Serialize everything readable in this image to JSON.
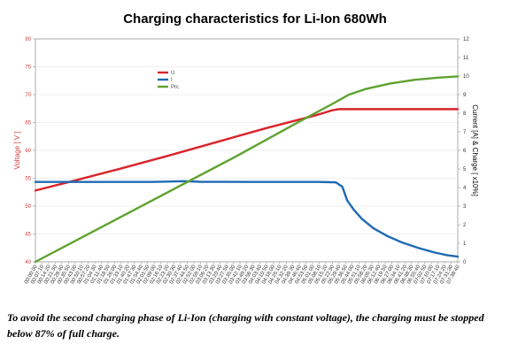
{
  "caption": "To avoid the second charging phase of Li-Ion (charging with constant voltage), the charging must be stopped below 87% of full charge.",
  "chart_data": {
    "type": "line",
    "title": "Charging characteristics for Li-Ion 680Wh",
    "ylabel_left": "Voltage [ V ]",
    "ylabel_right": "Current [A] & Charge [ x10%]",
    "ylim_left": [
      40,
      80
    ],
    "yticks_left": [
      "40",
      "45",
      "50",
      "55",
      "60",
      "65",
      "70",
      "75",
      "80"
    ],
    "ylim_right": [
      0,
      12
    ],
    "yticks_right": [
      "0",
      "1",
      "2",
      "3",
      "4",
      "5",
      "6",
      "7",
      "8",
      "9",
      "10",
      "11",
      "12"
    ],
    "xlim": [
      0,
      256
    ],
    "x_ticks": [
      "00:00:00",
      "00:07:10",
      "00:14:20",
      "00:21:30",
      "00:28:40",
      "00:35:50",
      "00:43:00",
      "00:50:10",
      "00:57:20",
      "01:04:30",
      "01:11:40",
      "01:18:50",
      "01:26:00",
      "01:33:10",
      "01:40:20",
      "01:47:30",
      "01:54:40",
      "02:01:50",
      "02:09:00",
      "02:16:10",
      "02:23:20",
      "02:30:30",
      "02:37:40",
      "02:44:50",
      "02:52:00",
      "02:59:10",
      "03:06:20",
      "03:13:30",
      "03:20:40",
      "03:27:50",
      "03:35:00",
      "03:42:10",
      "03:49:20",
      "03:56:30",
      "04:03:40",
      "04:10:50",
      "04:18:00",
      "04:25:10",
      "04:32:20",
      "04:39:30",
      "04:46:40",
      "04:53:50",
      "05:01:00",
      "05:08:10",
      "05:15:20",
      "05:22:30",
      "05:29:40",
      "05:36:50",
      "05:44:00",
      "05:51:10",
      "05:58:20",
      "06:05:30",
      "06:12:40",
      "06:19:50",
      "06:27:00",
      "06:34:10",
      "06:41:20",
      "06:48:30",
      "06:55:40",
      "07:02:50",
      "07:10:00",
      "07:17:10",
      "07:24:20",
      "07:31:30",
      "07:38:40"
    ],
    "legend_position": "top-left",
    "series": [
      {
        "name": "U",
        "axis": "left",
        "color": "#d9232a",
        "points": [
          [
            0,
            52.8
          ],
          [
            20,
            54.3
          ],
          [
            50,
            56.6
          ],
          [
            80,
            59.0
          ],
          [
            110,
            61.5
          ],
          [
            140,
            64.0
          ],
          [
            170,
            66.3
          ],
          [
            180,
            67.2
          ],
          [
            184,
            67.4
          ],
          [
            256,
            67.4
          ]
        ]
      },
      {
        "name": "I",
        "axis": "right",
        "color": "#1f6ab3",
        "points": [
          [
            0,
            4.3
          ],
          [
            50,
            4.3
          ],
          [
            70,
            4.3
          ],
          [
            80,
            4.32
          ],
          [
            90,
            4.34
          ],
          [
            100,
            4.31
          ],
          [
            130,
            4.3
          ],
          [
            160,
            4.3
          ],
          [
            172,
            4.3
          ],
          [
            182,
            4.28
          ],
          [
            186,
            4.05
          ],
          [
            189,
            3.3
          ],
          [
            193,
            2.8
          ],
          [
            198,
            2.3
          ],
          [
            205,
            1.8
          ],
          [
            213,
            1.4
          ],
          [
            222,
            1.05
          ],
          [
            232,
            0.75
          ],
          [
            242,
            0.5
          ],
          [
            250,
            0.35
          ],
          [
            256,
            0.28
          ]
        ]
      },
      {
        "name": "Prc",
        "axis": "right",
        "color": "#5ea22f",
        "points": [
          [
            0,
            0.0
          ],
          [
            60,
            2.8
          ],
          [
            120,
            5.6
          ],
          [
            160,
            7.55
          ],
          [
            180,
            8.5
          ],
          [
            190,
            9.0
          ],
          [
            200,
            9.3
          ],
          [
            215,
            9.6
          ],
          [
            230,
            9.8
          ],
          [
            245,
            9.92
          ],
          [
            256,
            9.98
          ]
        ]
      }
    ]
  }
}
